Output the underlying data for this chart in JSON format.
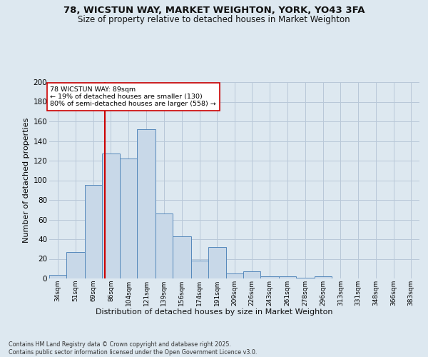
{
  "title_line1": "78, WICSTUN WAY, MARKET WEIGHTON, YORK, YO43 3FA",
  "title_line2": "Size of property relative to detached houses in Market Weighton",
  "xlabel": "Distribution of detached houses by size in Market Weighton",
  "ylabel": "Number of detached properties",
  "categories": [
    "34sqm",
    "51sqm",
    "69sqm",
    "86sqm",
    "104sqm",
    "121sqm",
    "139sqm",
    "156sqm",
    "174sqm",
    "191sqm",
    "209sqm",
    "226sqm",
    "243sqm",
    "261sqm",
    "278sqm",
    "296sqm",
    "313sqm",
    "331sqm",
    "348sqm",
    "366sqm",
    "383sqm"
  ],
  "bar_color": "#c8d8e8",
  "bar_edge_color": "#5588bb",
  "ref_line_x": 89,
  "ref_line_color": "#cc0000",
  "annotation_text": "78 WICSTUN WAY: 89sqm\n← 19% of detached houses are smaller (130)\n80% of semi-detached houses are larger (558) →",
  "annotation_box_color": "#ffffff",
  "annotation_box_edge": "#cc0000",
  "ylim": [
    0,
    200
  ],
  "yticks": [
    0,
    20,
    40,
    60,
    80,
    100,
    120,
    140,
    160,
    180,
    200
  ],
  "bin_edges": [
    34,
    51,
    69,
    86,
    104,
    121,
    139,
    156,
    174,
    191,
    209,
    226,
    243,
    261,
    278,
    296,
    313,
    331,
    348,
    366,
    383
  ],
  "bin_heights": [
    4,
    27,
    95,
    127,
    122,
    152,
    66,
    43,
    18,
    32,
    5,
    7,
    2,
    2,
    1,
    2,
    0,
    0,
    0,
    0,
    0
  ],
  "footer": "Contains HM Land Registry data © Crown copyright and database right 2025.\nContains public sector information licensed under the Open Government Licence v3.0.",
  "bg_color": "#dde8f0",
  "grid_color": "#b8c8d8"
}
